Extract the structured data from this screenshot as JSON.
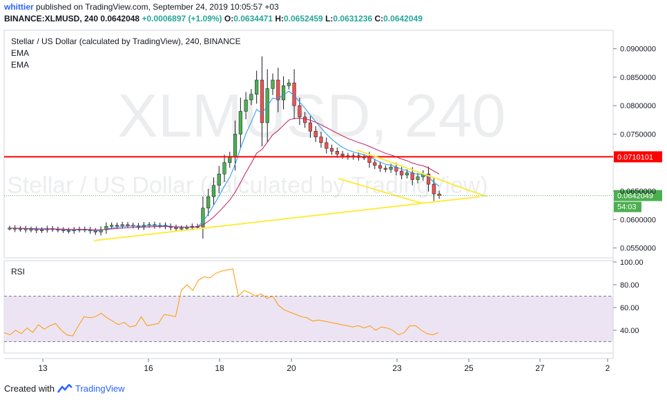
{
  "header": {
    "author": "whittier",
    "published_text": "published on TradingView.com, September 24, 2019 10:05:57 +03",
    "symbol_line": "BINANCE:XLMUSD, 240",
    "last": "0.0642048",
    "change": "+0.0006897 (+1.09%)",
    "open_label": "O:",
    "open": "0.0634471",
    "high_label": "H:",
    "high": "0.0652459",
    "low_label": "L:",
    "low": "0.0631236",
    "close_label": "C:",
    "close": "0.0642049"
  },
  "main_pane": {
    "title": "Stellar / US Dollar (calculated by TradingView), 240, BINANCE",
    "indicators": [
      "EMA",
      "EMA"
    ],
    "watermark_main": "XLMUSD, 240",
    "watermark_sub": "Stellar / US Dollar (calculated by TradingView)",
    "price_axis": [
      "0.0900000",
      "0.0850000",
      "0.0800000",
      "0.0750000",
      "0.0650000",
      "0.0600000",
      "0.0550000"
    ],
    "resistance_label": "0.0710101",
    "last_price_label": "0.0642049",
    "countdown_label": "54:03"
  },
  "rsi_pane": {
    "title": "RSI",
    "axis": [
      "100.00",
      "80.00",
      "60.00",
      "40.00"
    ]
  },
  "time_axis": [
    "13",
    "16",
    "18",
    "20",
    "23",
    "25",
    "27",
    "2"
  ],
  "footer": {
    "created_with": "Created with",
    "brand": "TradingView"
  },
  "colors": {
    "up": "#26a69a",
    "up_fill": "#4caf50",
    "down": "#ef5350",
    "ema_fast": "#2196f3",
    "ema_slow": "#c2185b",
    "resistance": "#ff0000",
    "trendline": "#ffeb3b",
    "rsi_line": "#ff9800",
    "rsi_band": "#e8dff0"
  },
  "chart_data": {
    "type": "candlestick",
    "symbol": "BINANCE:XLMUSD",
    "interval": "240",
    "x_ticks": [
      "13",
      "16",
      "18",
      "20",
      "23",
      "25",
      "27",
      "2"
    ],
    "y_range": [
      0.0535,
      0.0925
    ],
    "close_series_approx": [
      0.0585,
      0.0583,
      0.0584,
      0.0582,
      0.0583,
      0.0581,
      0.0582,
      0.0584,
      0.0583,
      0.0582,
      0.0581,
      0.058,
      0.0582,
      0.0583,
      0.0582,
      0.058,
      0.0578,
      0.0582,
      0.0588,
      0.059,
      0.0589,
      0.0591,
      0.059,
      0.0589,
      0.0587,
      0.059,
      0.0591,
      0.0589,
      0.059,
      0.0588,
      0.0586,
      0.0584,
      0.0585,
      0.0586,
      0.0588,
      0.0587,
      0.062,
      0.064,
      0.066,
      0.068,
      0.07,
      0.071,
      0.075,
      0.079,
      0.081,
      0.082,
      0.0845,
      0.077,
      0.083,
      0.0845,
      0.081,
      0.0835,
      0.084,
      0.08,
      0.078,
      0.077,
      0.0755,
      0.0745,
      0.0735,
      0.0725,
      0.072,
      0.0715,
      0.0712,
      0.071,
      0.0712,
      0.0709,
      0.071,
      0.07,
      0.0695,
      0.069,
      0.0688,
      0.0692,
      0.0685,
      0.0678,
      0.0682,
      0.067,
      0.0675,
      0.068,
      0.0662,
      0.0645,
      0.0642
    ],
    "ema_fast_approx_endpoints": {
      "start": 0.0586,
      "peak": 0.08,
      "end": 0.0652
    },
    "ema_slow_approx_endpoints": {
      "start": 0.0588,
      "peak": 0.074,
      "end": 0.0672
    },
    "annotations": {
      "horizontal_resistance": 0.0710101,
      "ascending_support": {
        "from_price": 0.0563,
        "to_price": 0.064
      },
      "descending_wedge_upper": {
        "from_price": 0.0722,
        "to_price": 0.064
      },
      "descending_wedge_lower": {
        "from_price": 0.0672,
        "to_price": 0.0628
      }
    },
    "rsi": {
      "upper_band": 70,
      "lower_band": 30,
      "values_approx": [
        38,
        36,
        40,
        37,
        42,
        38,
        45,
        41,
        44,
        46,
        40,
        36,
        35,
        44,
        52,
        51,
        52,
        55,
        51,
        48,
        45,
        47,
        43,
        44,
        52,
        44,
        45,
        46,
        54,
        53,
        52,
        75,
        80,
        75,
        84,
        87,
        86,
        90,
        92,
        93,
        94,
        70,
        75,
        73,
        70,
        72,
        68,
        70,
        62,
        58,
        56,
        54,
        52,
        51,
        48,
        49,
        48,
        47,
        46,
        45,
        44,
        43,
        44,
        42,
        44,
        40,
        43,
        42,
        40,
        36,
        38,
        44,
        44,
        40,
        37,
        36,
        38
      ]
    }
  }
}
